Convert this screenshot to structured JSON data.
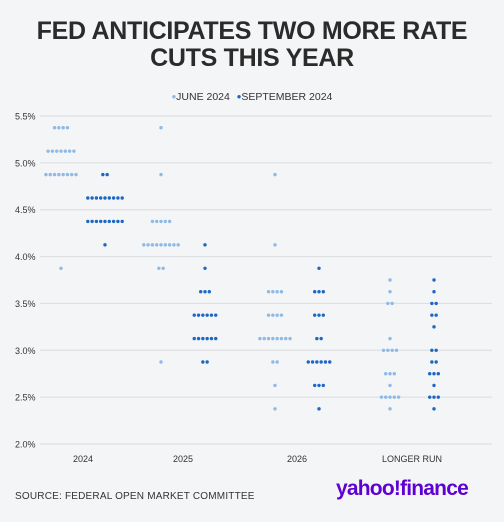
{
  "title_line1": "FED ANTICIPATES TWO MORE RATE",
  "title_line2": "CUTS THIS YEAR",
  "source": "SOURCE: FEDERAL OPEN MARKET COMMITTEE",
  "logo": {
    "name": "yahoo!finance",
    "part1": "yahoo!",
    "part2": "finance"
  },
  "colors": {
    "june": "#8fb9e6",
    "september": "#1f67c4",
    "grid": "#d9dcdf",
    "background": "#f4f5f6"
  },
  "chart_data": {
    "type": "scatter",
    "title": "FED ANTICIPATES TWO MORE RATE CUTS THIS YEAR",
    "legend_position": "top-center",
    "grid": true,
    "ylim": [
      2.0,
      5.5
    ],
    "y_ticks": [
      "5.5%",
      "5.0%",
      "4.5%",
      "4.0%",
      "3.5%",
      "3.0%",
      "2.5%",
      "2.0%"
    ],
    "y_tick_values": [
      5.5,
      5.0,
      4.5,
      4.0,
      3.5,
      3.0,
      2.5,
      2.0
    ],
    "categories": [
      "2024",
      "2025",
      "2026",
      "LONGER RUN"
    ],
    "series": [
      {
        "name": "JUNE 2024",
        "color": "#8fb9e6",
        "points": [
          {
            "x": "2024",
            "rates": [
              {
                "y": 5.375,
                "count": 4
              },
              {
                "y": 5.125,
                "count": 7
              },
              {
                "y": 4.875,
                "count": 8
              },
              {
                "y": 3.875,
                "count": 1
              }
            ]
          },
          {
            "x": "2025",
            "rates": [
              {
                "y": 5.375,
                "count": 1
              },
              {
                "y": 4.875,
                "count": 1
              },
              {
                "y": 4.375,
                "count": 5
              },
              {
                "y": 4.125,
                "count": 9
              },
              {
                "y": 3.875,
                "count": 2
              },
              {
                "y": 2.875,
                "count": 1
              }
            ]
          },
          {
            "x": "2026",
            "rates": [
              {
                "y": 4.875,
                "count": 1
              },
              {
                "y": 4.125,
                "count": 1
              },
              {
                "y": 3.625,
                "count": 4
              },
              {
                "y": 3.375,
                "count": 4
              },
              {
                "y": 3.125,
                "count": 8
              },
              {
                "y": 2.875,
                "count": 2
              },
              {
                "y": 2.625,
                "count": 1
              },
              {
                "y": 2.375,
                "count": 1
              }
            ]
          },
          {
            "x": "LONGER RUN",
            "rates": [
              {
                "y": 3.75,
                "count": 1
              },
              {
                "y": 3.625,
                "count": 1
              },
              {
                "y": 3.5,
                "count": 2
              },
              {
                "y": 3.125,
                "count": 1
              },
              {
                "y": 3.0,
                "count": 4
              },
              {
                "y": 2.75,
                "count": 3
              },
              {
                "y": 2.625,
                "count": 1
              },
              {
                "y": 2.5,
                "count": 5
              },
              {
                "y": 2.375,
                "count": 1
              }
            ]
          }
        ]
      },
      {
        "name": "SEPTEMBER 2024",
        "color": "#1f67c4",
        "points": [
          {
            "x": "2024",
            "rates": [
              {
                "y": 4.875,
                "count": 2
              },
              {
                "y": 4.625,
                "count": 9
              },
              {
                "y": 4.375,
                "count": 9
              },
              {
                "y": 4.125,
                "count": 1
              }
            ]
          },
          {
            "x": "2025",
            "rates": [
              {
                "y": 4.125,
                "count": 1
              },
              {
                "y": 3.875,
                "count": 1
              },
              {
                "y": 3.625,
                "count": 3
              },
              {
                "y": 3.375,
                "count": 6
              },
              {
                "y": 3.125,
                "count": 6
              },
              {
                "y": 2.875,
                "count": 2
              }
            ]
          },
          {
            "x": "2026",
            "rates": [
              {
                "y": 3.875,
                "count": 1
              },
              {
                "y": 3.625,
                "count": 3
              },
              {
                "y": 3.375,
                "count": 3
              },
              {
                "y": 3.125,
                "count": 2
              },
              {
                "y": 2.875,
                "count": 6
              },
              {
                "y": 2.625,
                "count": 3
              },
              {
                "y": 2.375,
                "count": 1
              }
            ]
          },
          {
            "x": "LONGER RUN",
            "rates": [
              {
                "y": 3.75,
                "count": 1
              },
              {
                "y": 3.625,
                "count": 1
              },
              {
                "y": 3.5,
                "count": 2
              },
              {
                "y": 3.375,
                "count": 2
              },
              {
                "y": 3.25,
                "count": 1
              },
              {
                "y": 3.0,
                "count": 2
              },
              {
                "y": 2.875,
                "count": 2
              },
              {
                "y": 2.75,
                "count": 3
              },
              {
                "y": 2.625,
                "count": 1
              },
              {
                "y": 2.5,
                "count": 3
              },
              {
                "y": 2.375,
                "count": 1
              }
            ]
          }
        ]
      }
    ]
  }
}
